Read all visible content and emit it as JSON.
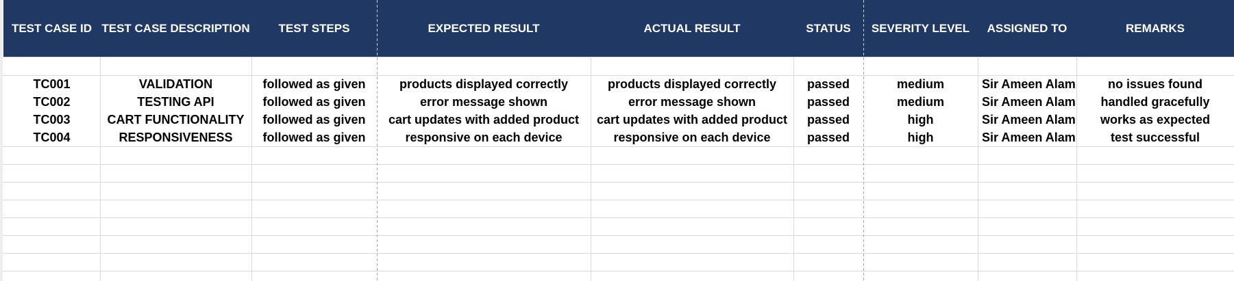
{
  "theme": {
    "header_bg": "#203864",
    "header_text": "#ffffff",
    "grid": "#d9d9d9",
    "page_break": "#a6a6a6"
  },
  "sheet": {
    "headers": [
      "TEST CASE ID",
      "TEST CASE DESCRIPTION",
      "TEST STEPS",
      "EXPECTED RESULT",
      "ACTUAL RESULT",
      "STATUS",
      "SEVERITY LEVEL",
      "ASSIGNED TO",
      "REMARKS"
    ],
    "rows": [
      [
        "TC001",
        "VALIDATION",
        "followed as given",
        "products displayed correctly",
        "products displayed correctly",
        "passed",
        "medium",
        "Sir Ameen Alam",
        "no issues found"
      ],
      [
        "TC002",
        "TESTING API",
        "followed as given",
        "error message shown",
        "error message shown",
        "passed",
        "medium",
        "Sir Ameen Alam",
        "handled gracefully"
      ],
      [
        "TC003",
        "CART FUNCTIONALITY",
        "followed as given",
        "cart updates with added product",
        "cart updates with added product",
        "passed",
        "high",
        "Sir Ameen Alam",
        "works as expected"
      ],
      [
        "TC004",
        "RESPONSIVENESS",
        "followed as given",
        "responsive on each device",
        "responsive on each device",
        "passed",
        "high",
        "Sir Ameen Alam",
        "test successful"
      ]
    ]
  }
}
